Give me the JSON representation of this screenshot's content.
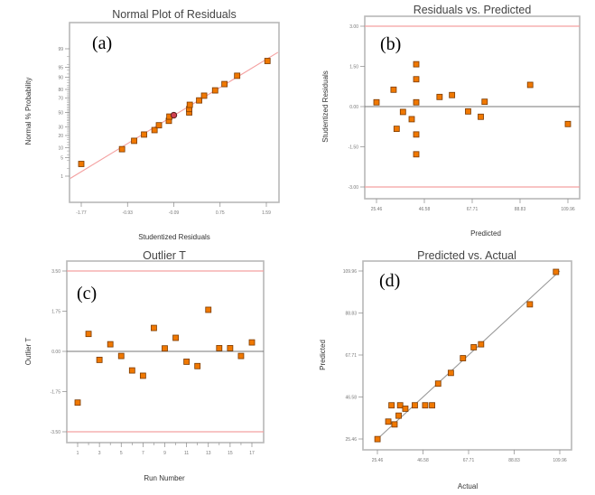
{
  "chart_data": [
    {
      "id": "a",
      "type": "scatter",
      "panel_label": "(a)",
      "title": "Normal Plot of Residuals",
      "xlabel": "Studentized Residuals",
      "ylabel": "Normal % Probability",
      "xlim": [
        -1.77,
        1.59
      ],
      "x_ticks": [
        "-1.77",
        "-0.93",
        "-0.09",
        "0.75",
        "1.59"
      ],
      "x_tick_values": [
        -1.77,
        -0.93,
        -0.09,
        0.75,
        1.59
      ],
      "y_scale": "normal-probability",
      "y_ticks": [
        "1",
        "5",
        "10",
        "20",
        "30",
        "50",
        "70",
        "80",
        "90",
        "95",
        "99"
      ],
      "y_tick_values": [
        1,
        5,
        10,
        20,
        30,
        50,
        70,
        80,
        90,
        95,
        99
      ],
      "reference_line": {
        "color": "#f4a0a0",
        "from": [
          -1.97,
          0.8
        ],
        "to": [
          1.8,
          98.6
        ]
      },
      "points": [
        {
          "x": -1.77,
          "y": 3
        },
        {
          "x": -1.03,
          "y": 9
        },
        {
          "x": -0.81,
          "y": 15
        },
        {
          "x": -0.63,
          "y": 21
        },
        {
          "x": -0.44,
          "y": 26
        },
        {
          "x": -0.36,
          "y": 32
        },
        {
          "x": -0.18,
          "y": 38
        },
        {
          "x": -0.17,
          "y": 44
        },
        {
          "x": -0.09,
          "y": 46,
          "highlight": true
        },
        {
          "x": 0.19,
          "y": 50
        },
        {
          "x": 0.19,
          "y": 55
        },
        {
          "x": 0.2,
          "y": 61
        },
        {
          "x": 0.37,
          "y": 67
        },
        {
          "x": 0.46,
          "y": 73
        },
        {
          "x": 0.66,
          "y": 79
        },
        {
          "x": 0.83,
          "y": 85
        },
        {
          "x": 1.06,
          "y": 91
        },
        {
          "x": 1.61,
          "y": 97
        }
      ]
    },
    {
      "id": "b",
      "type": "scatter",
      "panel_label": "(b)",
      "title": "Residuals vs. Predicted",
      "xlabel": "Predicted",
      "ylabel": "Studentized Residuals",
      "xlim": [
        25.46,
        109.96
      ],
      "ylim": [
        -3.0,
        3.0
      ],
      "x_ticks": [
        "25.46",
        "46.58",
        "67.71",
        "88.83",
        "109.96"
      ],
      "x_tick_values": [
        25.46,
        46.58,
        67.71,
        88.83,
        109.96
      ],
      "y_ticks": [
        "-3.00",
        "-1.50",
        "0.00",
        "1.50",
        "3.00"
      ],
      "y_tick_values": [
        -3.0,
        -1.5,
        0.0,
        1.5,
        3.0
      ],
      "limit_lines": [
        3.0,
        -3.0
      ],
      "limit_color": "#f4a0a0",
      "zero_line": 0.0,
      "points": [
        {
          "x": 25.46,
          "y": 0.16
        },
        {
          "x": 33.0,
          "y": 0.63
        },
        {
          "x": 34.35,
          "y": -0.83
        },
        {
          "x": 37.14,
          "y": -0.2
        },
        {
          "x": 41.0,
          "y": -0.47
        },
        {
          "x": 43.0,
          "y": 1.58
        },
        {
          "x": 43.0,
          "y": 1.02
        },
        {
          "x": 43.0,
          "y": 0.16
        },
        {
          "x": 43.0,
          "y": -1.04
        },
        {
          "x": 43.0,
          "y": -1.78
        },
        {
          "x": 53.3,
          "y": 0.36
        },
        {
          "x": 58.8,
          "y": 0.43
        },
        {
          "x": 65.9,
          "y": -0.18
        },
        {
          "x": 71.5,
          "y": -0.38
        },
        {
          "x": 73.2,
          "y": 0.18
        },
        {
          "x": 93.3,
          "y": 0.81
        },
        {
          "x": 109.96,
          "y": -0.65
        }
      ]
    },
    {
      "id": "c",
      "type": "scatter",
      "panel_label": "(c)",
      "title": "Outlier T",
      "xlabel": "Run Number",
      "ylabel": "Outlier T",
      "xlim": [
        1,
        17
      ],
      "ylim": [
        -3.5,
        3.5
      ],
      "x_ticks": [
        "1",
        "3",
        "5",
        "7",
        "9",
        "11",
        "13",
        "15",
        "17"
      ],
      "x_tick_values": [
        1,
        3,
        5,
        7,
        9,
        11,
        13,
        15,
        17
      ],
      "y_ticks": [
        "-3.50",
        "-1.75",
        "0.00",
        "1.75",
        "3.50"
      ],
      "y_tick_values": [
        -3.5,
        -1.75,
        0.0,
        1.75,
        3.5
      ],
      "limit_lines": [
        3.5,
        -3.5
      ],
      "limit_color": "#f4a0a0",
      "zero_line": 0.0,
      "points": [
        {
          "x": 1,
          "y": -2.23
        },
        {
          "x": 2,
          "y": 0.76
        },
        {
          "x": 3,
          "y": -0.37
        },
        {
          "x": 4,
          "y": 0.31
        },
        {
          "x": 5,
          "y": -0.2
        },
        {
          "x": 6,
          "y": -0.83
        },
        {
          "x": 7,
          "y": -1.06
        },
        {
          "x": 8,
          "y": 1.02
        },
        {
          "x": 9,
          "y": 0.13
        },
        {
          "x": 10,
          "y": 0.59
        },
        {
          "x": 11,
          "y": -0.45
        },
        {
          "x": 12,
          "y": -0.64
        },
        {
          "x": 13,
          "y": 1.81
        },
        {
          "x": 14,
          "y": 0.14
        },
        {
          "x": 15,
          "y": 0.14
        },
        {
          "x": 16,
          "y": -0.2
        },
        {
          "x": 17,
          "y": 0.39
        }
      ]
    },
    {
      "id": "d",
      "type": "scatter",
      "panel_label": "(d)",
      "title": "Predicted vs. Actual",
      "xlabel": "Actual",
      "ylabel": "Predicted",
      "xlim": [
        25.46,
        109.96
      ],
      "ylim": [
        25.46,
        109.96
      ],
      "x_ticks": [
        "25.46",
        "46.58",
        "67.71",
        "88.83",
        "109.96"
      ],
      "x_tick_values": [
        25.46,
        46.58,
        67.71,
        88.83,
        109.96
      ],
      "y_ticks": [
        "25.46",
        "46.58",
        "67.71",
        "88.83",
        "109.96"
      ],
      "y_tick_values": [
        25.46,
        46.58,
        67.71,
        88.83,
        109.96
      ],
      "reference_line": {
        "color": "#999999",
        "from": [
          25.46,
          25.46
        ],
        "to": [
          109.96,
          109.96
        ]
      },
      "points": [
        {
          "x": 25.5,
          "y": 25.4
        },
        {
          "x": 30.5,
          "y": 34.2
        },
        {
          "x": 32.0,
          "y": 42.4
        },
        {
          "x": 33.4,
          "y": 32.8
        },
        {
          "x": 35.3,
          "y": 37.2
        },
        {
          "x": 36.0,
          "y": 42.4
        },
        {
          "x": 38.4,
          "y": 40.7
        },
        {
          "x": 42.8,
          "y": 42.4
        },
        {
          "x": 47.6,
          "y": 42.4
        },
        {
          "x": 50.8,
          "y": 42.4
        },
        {
          "x": 53.6,
          "y": 53.3
        },
        {
          "x": 59.5,
          "y": 58.7
        },
        {
          "x": 65.1,
          "y": 66.1
        },
        {
          "x": 70.1,
          "y": 71.6
        },
        {
          "x": 73.5,
          "y": 73.1
        },
        {
          "x": 96.1,
          "y": 93.2
        },
        {
          "x": 108.2,
          "y": 109.5
        }
      ]
    }
  ]
}
